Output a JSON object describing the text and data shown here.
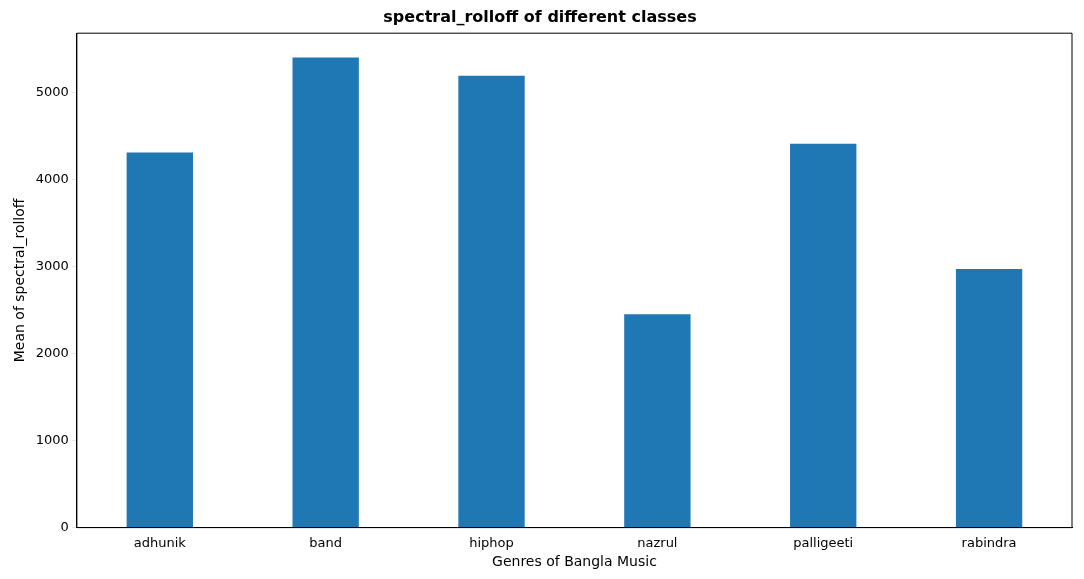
{
  "chart_data": {
    "type": "bar",
    "title": "spectral_rolloff of different classes",
    "xlabel": "Genres of Bangla Music",
    "ylabel": "Mean of spectral_rolloff",
    "categories": [
      "adhunik",
      "band",
      "hiphop",
      "nazrul",
      "palligeeti",
      "rabindra"
    ],
    "values": [
      4310,
      5400,
      5190,
      2450,
      4410,
      2970
    ],
    "color": "#1f77b4",
    "ylim": [
      0,
      5680
    ],
    "yticks": [
      0,
      1000,
      2000,
      3000,
      4000,
      5000
    ],
    "grid": false,
    "legend": false
  }
}
